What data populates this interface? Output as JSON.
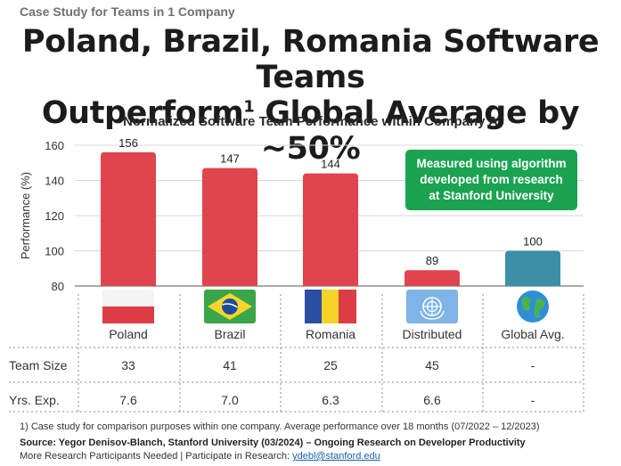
{
  "header": {
    "kicker": "Case Study for Teams in 1 Company",
    "headline_line1": "Poland, Brazil, Romania Software Teams",
    "headline_line2_pre": "Outperform",
    "headline_sup": "1",
    "headline_line2_post": " Global Average by ~50%"
  },
  "callout": {
    "line1": "Measured using algorithm",
    "line2": "developed from research",
    "line3": "at Stanford University"
  },
  "chart_data": {
    "type": "bar",
    "title": "Normalized Software Team Performance within Company A",
    "xlabel": "",
    "ylabel": "Performance (%)",
    "ylim": [
      80,
      160
    ],
    "yticks": [
      80,
      100,
      120,
      140,
      160
    ],
    "grid": true,
    "categories": [
      "Poland",
      "Brazil",
      "Romania",
      "Distributed",
      "Global Avg."
    ],
    "values": [
      156,
      147,
      144,
      89,
      100
    ],
    "value_labels": [
      "156",
      "147",
      "144",
      "89",
      "100"
    ],
    "colors": [
      "#e0444c",
      "#e0444c",
      "#e0444c",
      "#e0444c",
      "#3d8fa8"
    ]
  },
  "table": {
    "rows": [
      {
        "label": "Team Size",
        "values": [
          "33",
          "41",
          "25",
          "45",
          "-"
        ]
      },
      {
        "label": "Yrs. Exp.",
        "values": [
          "7.6",
          "7.0",
          "6.3",
          "6.6",
          "-"
        ]
      }
    ]
  },
  "flags": [
    "poland-flag",
    "brazil-flag",
    "romania-flag",
    "un-flag",
    "globe-icon"
  ],
  "footer": {
    "footnote": "1) Case study for comparison purposes within one company. Average performance over 18 months (07/2022 – 12/2023)",
    "source": "Source: Yegor Denisov-Blanch,  Stanford University  (03/2024)  – Ongoing Research on Developer Productivity",
    "participants_text": "More Research Participants Needed |  Participate in Research: ",
    "participants_email": "ydebl@stanford.edu"
  }
}
